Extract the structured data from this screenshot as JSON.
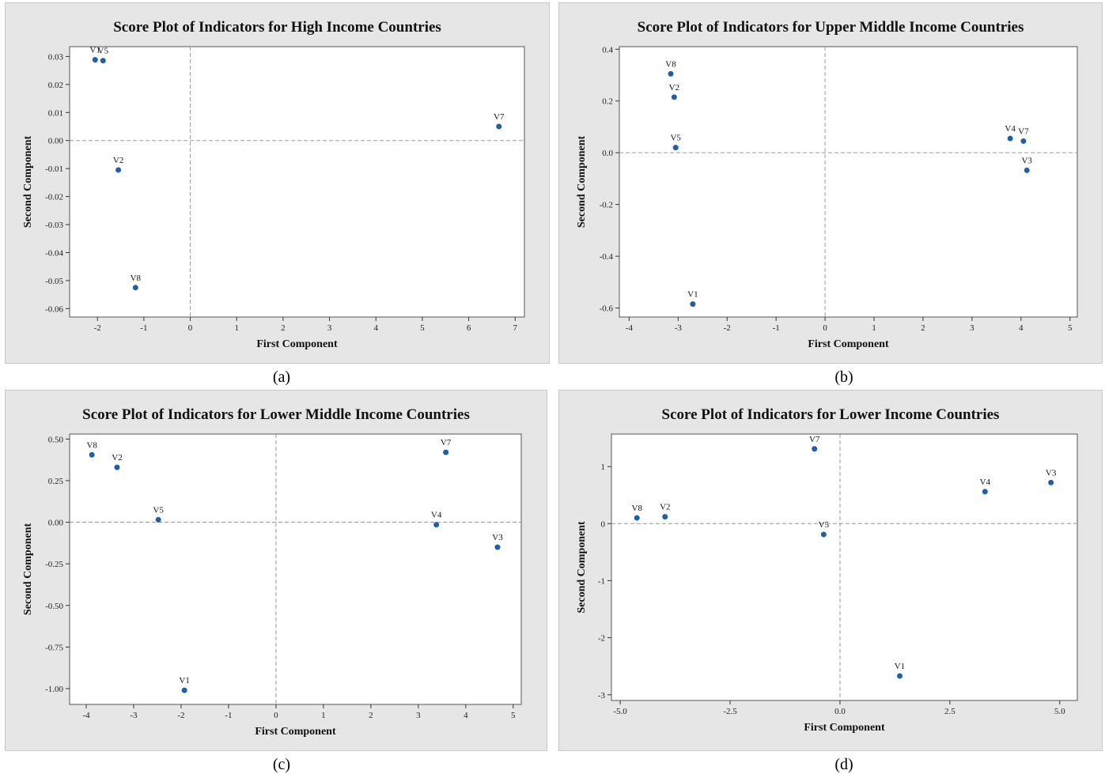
{
  "chart_data": [
    {
      "type": "scatter",
      "title": "Score Plot of Indicators for High Income Countries",
      "xlabel": "First Component",
      "ylabel": "Second Component",
      "caption": "(a)",
      "xlim": [
        -2.6,
        7.2
      ],
      "ylim": [
        -0.063,
        0.0335
      ],
      "xticks": [
        {
          "v": -2,
          "t": "-2"
        },
        {
          "v": -1,
          "t": "-1"
        },
        {
          "v": 0,
          "t": "0"
        },
        {
          "v": 1,
          "t": "1"
        },
        {
          "v": 2,
          "t": "2"
        },
        {
          "v": 3,
          "t": "3"
        },
        {
          "v": 4,
          "t": "4"
        },
        {
          "v": 5,
          "t": "5"
        },
        {
          "v": 6,
          "t": "6"
        },
        {
          "v": 7,
          "t": "7"
        }
      ],
      "yticks": [
        {
          "v": 0.03,
          "t": "0.03"
        },
        {
          "v": 0.02,
          "t": "0.02"
        },
        {
          "v": 0.01,
          "t": "0.01"
        },
        {
          "v": 0,
          "t": "0.00"
        },
        {
          "v": -0.01,
          "t": "-0.01"
        },
        {
          "v": -0.02,
          "t": "-0.02"
        },
        {
          "v": -0.03,
          "t": "-0.03"
        },
        {
          "v": -0.04,
          "t": "-0.04"
        },
        {
          "v": -0.05,
          "t": "-0.05"
        },
        {
          "v": -0.06,
          "t": "-0.06"
        }
      ],
      "points": [
        {
          "label": "V1",
          "x": -2.05,
          "y": 0.0288
        },
        {
          "label": "V5",
          "x": -1.88,
          "y": 0.0285
        },
        {
          "label": "V2",
          "x": -1.55,
          "y": -0.0105
        },
        {
          "label": "V8",
          "x": -1.18,
          "y": -0.0525
        },
        {
          "label": "V7",
          "x": 6.65,
          "y": 0.005
        }
      ],
      "grid": false
    },
    {
      "type": "scatter",
      "title": "Score Plot of Indicators for Upper Middle Income Countries",
      "xlabel": "First Component",
      "ylabel": "Second Component",
      "caption": "(b)",
      "xlim": [
        -4.2,
        5.15
      ],
      "ylim": [
        -0.635,
        0.41
      ],
      "xticks": [
        {
          "v": -4,
          "t": "-4"
        },
        {
          "v": -3,
          "t": "-3"
        },
        {
          "v": -2,
          "t": "-2"
        },
        {
          "v": -1,
          "t": "-1"
        },
        {
          "v": 0,
          "t": "0"
        },
        {
          "v": 1,
          "t": "1"
        },
        {
          "v": 2,
          "t": "2"
        },
        {
          "v": 3,
          "t": "3"
        },
        {
          "v": 4,
          "t": "4"
        },
        {
          "v": 5,
          "t": "5"
        }
      ],
      "yticks": [
        {
          "v": 0.4,
          "t": "0.4"
        },
        {
          "v": 0.2,
          "t": "0.2"
        },
        {
          "v": 0,
          "t": "0.0"
        },
        {
          "v": -0.2,
          "t": "-0.2"
        },
        {
          "v": -0.4,
          "t": "-0.4"
        },
        {
          "v": -0.6,
          "t": "-0.6"
        }
      ],
      "points": [
        {
          "label": "V8",
          "x": -3.15,
          "y": 0.305
        },
        {
          "label": "V2",
          "x": -3.08,
          "y": 0.215
        },
        {
          "label": "V5",
          "x": -3.05,
          "y": 0.02
        },
        {
          "label": "V1",
          "x": -2.7,
          "y": -0.585
        },
        {
          "label": "V4",
          "x": 3.78,
          "y": 0.055
        },
        {
          "label": "V7",
          "x": 4.05,
          "y": 0.045
        },
        {
          "label": "V3",
          "x": 4.12,
          "y": -0.068
        }
      ],
      "grid": false
    },
    {
      "type": "scatter",
      "title": "Score Plot of Indicators for Lower Middle Income Countries",
      "xlabel": "First Component",
      "ylabel": "Second Component",
      "caption": "(c)",
      "xlim": [
        -4.35,
        5.17
      ],
      "ylim": [
        -1.095,
        0.53
      ],
      "xticks": [
        {
          "v": -4,
          "t": "-4"
        },
        {
          "v": -3,
          "t": "-3"
        },
        {
          "v": -2,
          "t": "-2"
        },
        {
          "v": -1,
          "t": "-1"
        },
        {
          "v": 0,
          "t": "0"
        },
        {
          "v": 1,
          "t": "1"
        },
        {
          "v": 2,
          "t": "2"
        },
        {
          "v": 3,
          "t": "3"
        },
        {
          "v": 4,
          "t": "4"
        },
        {
          "v": 5,
          "t": "5"
        }
      ],
      "yticks": [
        {
          "v": 0.5,
          "t": "0.50"
        },
        {
          "v": 0.25,
          "t": "0.25"
        },
        {
          "v": 0,
          "t": "0.00"
        },
        {
          "v": -0.25,
          "t": "-0.25"
        },
        {
          "v": -0.5,
          "t": "-0.50"
        },
        {
          "v": -0.75,
          "t": "-0.75"
        },
        {
          "v": -1,
          "t": "-1.00"
        }
      ],
      "points": [
        {
          "label": "V8",
          "x": -3.88,
          "y": 0.405
        },
        {
          "label": "V2",
          "x": -3.35,
          "y": 0.33
        },
        {
          "label": "V5",
          "x": -2.48,
          "y": 0.015
        },
        {
          "label": "V1",
          "x": -1.93,
          "y": -1.01
        },
        {
          "label": "V7",
          "x": 3.58,
          "y": 0.42
        },
        {
          "label": "V4",
          "x": 3.38,
          "y": -0.015
        },
        {
          "label": "V3",
          "x": 4.67,
          "y": -0.15
        }
      ],
      "grid": false
    },
    {
      "type": "scatter",
      "title": "Score Plot of Indicators for Lower Income Countries",
      "xlabel": "First Component",
      "ylabel": "Second Component",
      "caption": "(d)",
      "xlim": [
        -5.2,
        5.4
      ],
      "ylim": [
        -3.1,
        1.57
      ],
      "xticks": [
        {
          "v": -5,
          "t": "-5.0"
        },
        {
          "v": -2.5,
          "t": "-2.5"
        },
        {
          "v": 0,
          "t": "0.0"
        },
        {
          "v": 2.5,
          "t": "2.5"
        },
        {
          "v": 5,
          "t": "5.0"
        }
      ],
      "yticks": [
        {
          "v": 1,
          "t": "1"
        },
        {
          "v": 0,
          "t": "0"
        },
        {
          "v": -1,
          "t": "-1"
        },
        {
          "v": -2,
          "t": "-2"
        },
        {
          "v": -3,
          "t": "-3"
        }
      ],
      "points": [
        {
          "label": "V7",
          "x": -0.58,
          "y": 1.31
        },
        {
          "label": "V8",
          "x": -4.62,
          "y": 0.1
        },
        {
          "label": "V2",
          "x": -3.98,
          "y": 0.12
        },
        {
          "label": "V5",
          "x": -0.37,
          "y": -0.19
        },
        {
          "label": "V4",
          "x": 3.3,
          "y": 0.56
        },
        {
          "label": "V3",
          "x": 4.8,
          "y": 0.72
        },
        {
          "label": "V1",
          "x": 1.36,
          "y": -2.67
        }
      ],
      "grid": false
    }
  ],
  "style": {
    "point_color": "#1f5fa8",
    "panel_bg": "#e6e6e6",
    "plot_bg": "#ffffff",
    "refline_color": "#999999"
  }
}
